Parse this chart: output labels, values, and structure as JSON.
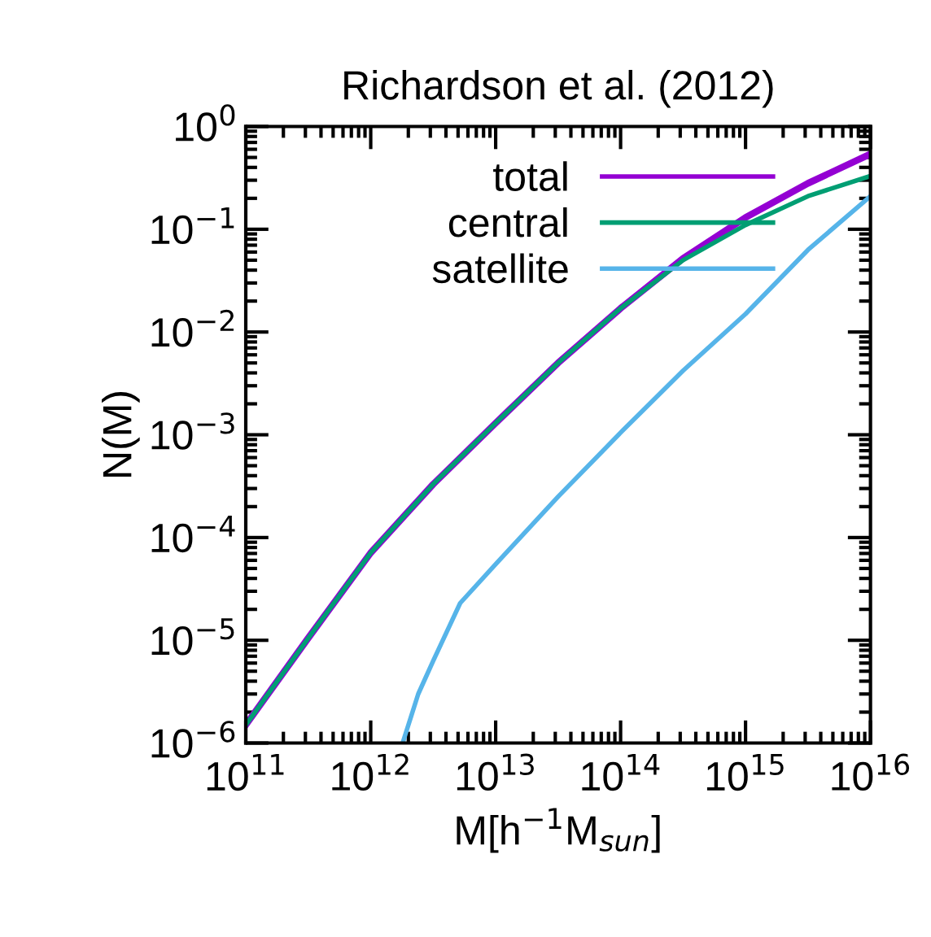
{
  "chart_data": {
    "type": "line",
    "title": "Richardson et al. (2012)",
    "xlabel": "M[h$^{−1}$M$_{sun}$]",
    "ylabel": "N(M)",
    "log": "xy",
    "xlim": [
      100000000000.0,
      1e+16
    ],
    "ylim": [
      1e-06,
      1
    ],
    "xticks": [
      {
        "value": 100000000000.0,
        "label": "10$^{11}$"
      },
      {
        "value": 1000000000000.0,
        "label": "10$^{12}$"
      },
      {
        "value": 10000000000000.0,
        "label": "10$^{13}$"
      },
      {
        "value": 100000000000000.0,
        "label": "10$^{14}$"
      },
      {
        "value": 1000000000000000.0,
        "label": "10$^{15}$"
      },
      {
        "value": 1e+16,
        "label": "10$^{16}$"
      }
    ],
    "yticks": [
      {
        "value": 1e-06,
        "label": "10$^{−6}$"
      },
      {
        "value": 1e-05,
        "label": "10$^{−5}$"
      },
      {
        "value": 0.0001,
        "label": "10$^{−4}$"
      },
      {
        "value": 0.001,
        "label": "10$^{−3}$"
      },
      {
        "value": 0.01,
        "label": "10$^{−2}$"
      },
      {
        "value": 0.1,
        "label": "10$^{−1}$"
      },
      {
        "value": 1,
        "label": "10$^{0}$"
      }
    ],
    "legend": "top right",
    "grid": false,
    "marker": "none",
    "line_style": "solid",
    "series": [
      {
        "name": "total",
        "color": "#9400d3",
        "x": [
          100000000000.0,
          316000000000.0,
          1000000000000.0,
          3160000000000.0,
          10000000000000.0,
          31600000000000.0,
          100000000000000.0,
          316000000000000.0,
          1000000000000000.0,
          3160000000000000.0,
          1e+16
        ],
        "values": [
          1.5e-06,
          1.05e-05,
          7.1e-05,
          0.00033,
          0.0013,
          0.005,
          0.017,
          0.052,
          0.13,
          0.28,
          0.54
        ]
      },
      {
        "name": "central",
        "color": "#009e73",
        "x": [
          100000000000.0,
          316000000000.0,
          1000000000000.0,
          3160000000000.0,
          10000000000000.0,
          31600000000000.0,
          100000000000000.0,
          316000000000000.0,
          1000000000000000.0,
          3160000000000000.0,
          1e+16
        ],
        "values": [
          1.5e-06,
          1.05e-05,
          7.1e-05,
          0.00033,
          0.0013,
          0.005,
          0.017,
          0.05,
          0.11,
          0.21,
          0.33
        ]
      },
      {
        "name": "satellite",
        "color": "#56b4e9",
        "x": [
          1800000000000.0,
          2400000000000.0,
          3160000000000.0,
          5200000000000.0,
          10000000000000.0,
          31600000000000.0,
          100000000000000.0,
          316000000000000.0,
          1000000000000000.0,
          3160000000000000.0,
          1e+16
        ],
        "values": [
          1e-06,
          3e-06,
          6.3e-06,
          2.3e-05,
          5.5e-05,
          0.00025,
          0.00105,
          0.0042,
          0.015,
          0.063,
          0.21
        ]
      }
    ]
  }
}
